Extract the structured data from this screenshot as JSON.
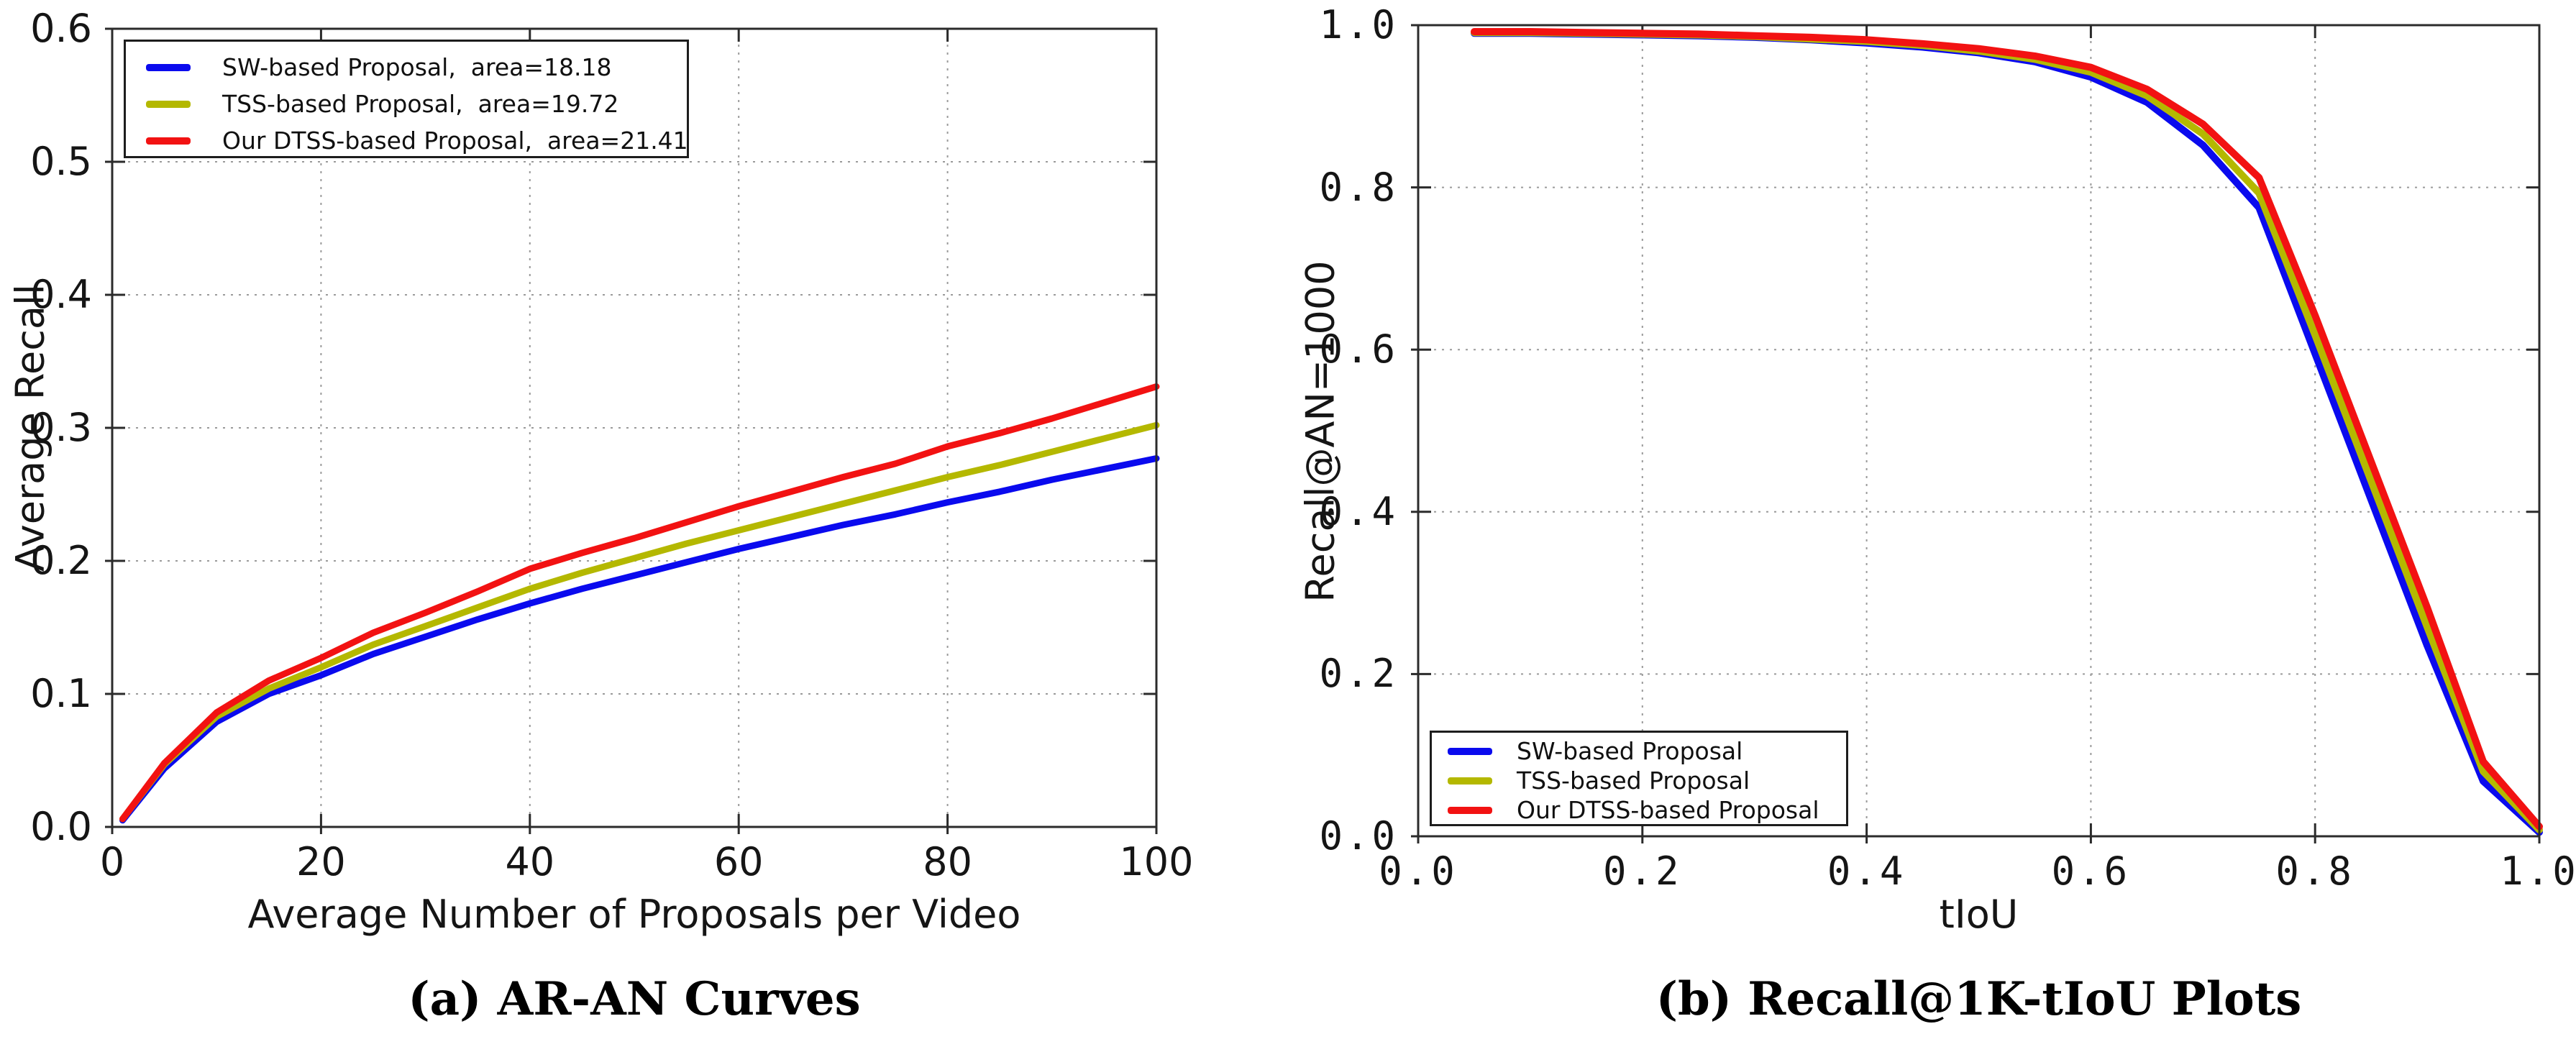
{
  "figure": {
    "background": "#ffffff",
    "caption_a": "(a) AR-AN Curves",
    "caption_b": "(b) Recall@1K-tIoU Plots"
  },
  "colors": {
    "axis": "#2b2b2b",
    "grid": "#9a9a9a",
    "sw_blue": "#0a0aee",
    "tss_yellow": "#b4b800",
    "dtss_red": "#f21212"
  },
  "chart_data": [
    {
      "id": "ar-an",
      "type": "line",
      "title": "(a) AR-AN Curves",
      "xlabel": "Average Number of Proposals per Video",
      "ylabel": "Average Recall",
      "xlim": [
        0,
        100
      ],
      "ylim": [
        0,
        0.6
      ],
      "grid": true,
      "legend_position": "top-left",
      "xticks": {
        "values": [
          0,
          20,
          40,
          60,
          80,
          100
        ],
        "labels": [
          "0",
          "20",
          "40",
          "60",
          "80",
          "100"
        ]
      },
      "yticks": {
        "values": [
          0.0,
          0.1,
          0.2,
          0.3,
          0.4,
          0.5,
          0.6
        ],
        "labels": [
          "0.0",
          "0.1",
          "0.2",
          "0.3",
          "0.4",
          "0.5",
          "0.6"
        ]
      },
      "x": [
        1,
        5,
        10,
        15,
        20,
        25,
        30,
        35,
        40,
        45,
        50,
        55,
        60,
        65,
        70,
        75,
        80,
        85,
        90,
        95,
        100
      ],
      "series": [
        {
          "name": "SW-based Proposal",
          "legend_label": "SW-based Proposal,  area=18.18",
          "area": 18.18,
          "color": "#0a0aee",
          "values": [
            0.005,
            0.044,
            0.079,
            0.1,
            0.114,
            0.13,
            0.143,
            0.156,
            0.168,
            0.179,
            0.189,
            0.199,
            0.209,
            0.218,
            0.227,
            0.235,
            0.244,
            0.252,
            0.261,
            0.269,
            0.277
          ]
        },
        {
          "name": "TSS-based Proposal",
          "legend_label": "TSS-based Proposal,  area=19.72",
          "area": 19.72,
          "color": "#b4b800",
          "values": [
            0.006,
            0.047,
            0.083,
            0.104,
            0.12,
            0.137,
            0.151,
            0.165,
            0.179,
            0.191,
            0.202,
            0.213,
            0.223,
            0.233,
            0.243,
            0.253,
            0.263,
            0.272,
            0.282,
            0.292,
            0.302
          ]
        },
        {
          "name": "Our DTSS-based Proposal",
          "legend_label": "Our DTSS-based Proposal,  area=21.41",
          "area": 21.41,
          "color": "#f21212",
          "values": [
            0.006,
            0.048,
            0.086,
            0.11,
            0.127,
            0.146,
            0.161,
            0.177,
            0.194,
            0.206,
            0.217,
            0.229,
            0.241,
            0.252,
            0.263,
            0.273,
            0.286,
            0.296,
            0.307,
            0.319,
            0.331
          ]
        }
      ]
    },
    {
      "id": "recall-tiou",
      "type": "line",
      "title": "(b) Recall@1K-tIoU Plots",
      "xlabel": "tIoU",
      "ylabel": "Recall@AN=1000",
      "xlim": [
        0,
        1
      ],
      "ylim": [
        0,
        1
      ],
      "grid": true,
      "legend_position": "bottom-left",
      "xticks": {
        "values": [
          0.0,
          0.2,
          0.4,
          0.6,
          0.8,
          1.0
        ],
        "labels": [
          "0.0",
          "0.2",
          "0.4",
          "0.6",
          "0.8",
          "1.0"
        ]
      },
      "yticks": {
        "values": [
          0.0,
          0.2,
          0.4,
          0.6,
          0.8,
          1.0
        ],
        "labels": [
          "0.0",
          "0.2",
          "0.4",
          "0.6",
          "0.8",
          "1.0"
        ]
      },
      "x": [
        0.05,
        0.1,
        0.15,
        0.2,
        0.25,
        0.3,
        0.35,
        0.4,
        0.45,
        0.5,
        0.55,
        0.6,
        0.65,
        0.7,
        0.75,
        0.8,
        0.85,
        0.9,
        0.95,
        1.0
      ],
      "series": [
        {
          "name": "SW-based Proposal",
          "legend_label": "SW-based Proposal",
          "color": "#0a0aee",
          "values": [
            0.99,
            0.99,
            0.989,
            0.988,
            0.987,
            0.985,
            0.982,
            0.978,
            0.973,
            0.966,
            0.955,
            0.936,
            0.905,
            0.852,
            0.775,
            0.595,
            0.415,
            0.235,
            0.068,
            0.005
          ]
        },
        {
          "name": "TSS-based Proposal",
          "legend_label": "TSS-based Proposal",
          "color": "#b4b800",
          "values": [
            0.991,
            0.991,
            0.99,
            0.989,
            0.988,
            0.986,
            0.983,
            0.98,
            0.975,
            0.968,
            0.958,
            0.942,
            0.913,
            0.866,
            0.793,
            0.618,
            0.438,
            0.258,
            0.08,
            0.008
          ]
        },
        {
          "name": "Our DTSS-based Proposal",
          "legend_label": "Our DTSS-based Proposal",
          "color": "#f21212",
          "values": [
            0.992,
            0.992,
            0.991,
            0.99,
            0.989,
            0.987,
            0.985,
            0.982,
            0.977,
            0.971,
            0.962,
            0.948,
            0.921,
            0.878,
            0.812,
            0.642,
            0.462,
            0.282,
            0.092,
            0.012
          ]
        }
      ]
    }
  ]
}
